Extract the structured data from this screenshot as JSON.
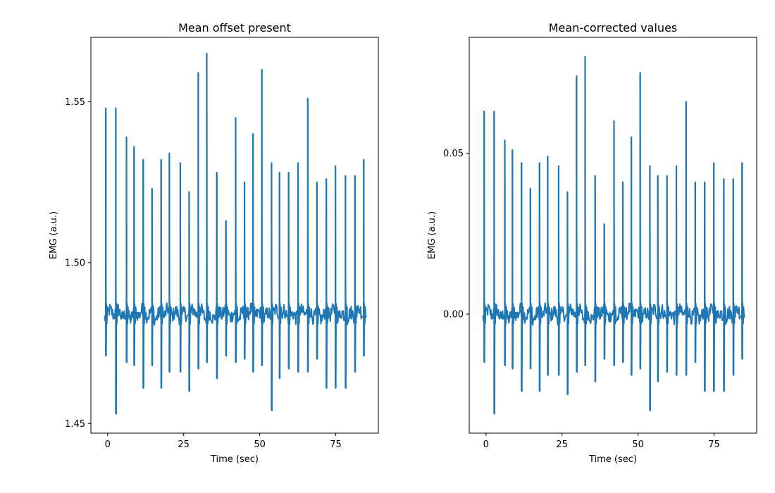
{
  "chart_data": [
    {
      "type": "line",
      "title": "Mean offset present",
      "xlabel": "Time (sec)",
      "ylabel": "EMG (a.u.)",
      "xlim": [
        -5.5,
        89
      ],
      "ylim": [
        1.447,
        1.57
      ],
      "x_ticks": [
        0,
        25,
        50,
        75
      ],
      "x_tick_labels": [
        "0",
        "25",
        "50",
        "75"
      ],
      "y_ticks": [
        1.45,
        1.5,
        1.55
      ],
      "y_tick_labels": [
        "1.45",
        "1.50",
        "1.55"
      ],
      "grid": false,
      "color": "#1f77b4",
      "baseline": 1.484,
      "x_range": [
        -1,
        85
      ],
      "spikes": [
        {
          "x": -0.6,
          "high": 1.548,
          "low": 1.471
        },
        {
          "x": 2.7,
          "high": 1.548,
          "low": 1.453
        },
        {
          "x": 6.2,
          "high": 1.539,
          "low": 1.469
        },
        {
          "x": 8.7,
          "high": 1.536,
          "low": 1.468
        },
        {
          "x": 11.7,
          "high": 1.532,
          "low": 1.461
        },
        {
          "x": 14.6,
          "high": 1.523,
          "low": 1.468
        },
        {
          "x": 17.6,
          "high": 1.532,
          "low": 1.461
        },
        {
          "x": 20.3,
          "high": 1.534,
          "low": 1.466
        },
        {
          "x": 23.9,
          "high": 1.531,
          "low": 1.466
        },
        {
          "x": 26.8,
          "high": 1.522,
          "low": 1.46
        },
        {
          "x": 29.8,
          "high": 1.559,
          "low": 1.467
        },
        {
          "x": 32.6,
          "high": 1.565,
          "low": 1.469
        },
        {
          "x": 35.9,
          "high": 1.528,
          "low": 1.464
        },
        {
          "x": 38.9,
          "high": 1.513,
          "low": 1.471
        },
        {
          "x": 42.1,
          "high": 1.545,
          "low": 1.469
        },
        {
          "x": 45.0,
          "high": 1.525,
          "low": 1.47
        },
        {
          "x": 47.8,
          "high": 1.54,
          "low": 1.466
        },
        {
          "x": 50.7,
          "high": 1.56,
          "low": 1.468
        },
        {
          "x": 53.9,
          "high": 1.531,
          "low": 1.454
        },
        {
          "x": 56.5,
          "high": 1.528,
          "low": 1.464
        },
        {
          "x": 59.5,
          "high": 1.528,
          "low": 1.467
        },
        {
          "x": 62.6,
          "high": 1.531,
          "low": 1.466
        },
        {
          "x": 65.8,
          "high": 1.551,
          "low": 1.466
        },
        {
          "x": 68.8,
          "high": 1.525,
          "low": 1.47
        },
        {
          "x": 71.9,
          "high": 1.526,
          "low": 1.461
        },
        {
          "x": 74.9,
          "high": 1.53,
          "low": 1.461
        },
        {
          "x": 78.2,
          "high": 1.527,
          "low": 1.461
        },
        {
          "x": 81.3,
          "high": 1.527,
          "low": 1.466
        },
        {
          "x": 84.2,
          "high": 1.532,
          "low": 1.471
        }
      ]
    },
    {
      "type": "line",
      "title": "Mean-corrected values",
      "xlabel": "Time (sec)",
      "ylabel": "EMG (a.u.)",
      "xlim": [
        -5.5,
        89
      ],
      "ylim": [
        -0.037,
        0.086
      ],
      "x_ticks": [
        0,
        25,
        50,
        75
      ],
      "x_tick_labels": [
        "0",
        "25",
        "50",
        "75"
      ],
      "y_ticks": [
        0.0,
        0.05
      ],
      "y_tick_labels": [
        "0.00",
        "0.05"
      ],
      "grid": false,
      "color": "#1f77b4",
      "baseline": 0.0,
      "x_range": [
        -1,
        85
      ],
      "spikes": [
        {
          "x": -0.6,
          "high": 0.063,
          "low": -0.015
        },
        {
          "x": 2.7,
          "high": 0.063,
          "low": -0.031
        },
        {
          "x": 6.2,
          "high": 0.054,
          "low": -0.016
        },
        {
          "x": 8.7,
          "high": 0.051,
          "low": -0.017
        },
        {
          "x": 11.7,
          "high": 0.047,
          "low": -0.024
        },
        {
          "x": 14.6,
          "high": 0.039,
          "low": -0.017
        },
        {
          "x": 17.6,
          "high": 0.047,
          "low": -0.024
        },
        {
          "x": 20.3,
          "high": 0.049,
          "low": -0.019
        },
        {
          "x": 23.9,
          "high": 0.046,
          "low": -0.019
        },
        {
          "x": 26.8,
          "high": 0.038,
          "low": -0.025
        },
        {
          "x": 29.8,
          "high": 0.074,
          "low": -0.018
        },
        {
          "x": 32.6,
          "high": 0.08,
          "low": -0.016
        },
        {
          "x": 35.9,
          "high": 0.043,
          "low": -0.021
        },
        {
          "x": 38.9,
          "high": 0.028,
          "low": -0.014
        },
        {
          "x": 42.1,
          "high": 0.06,
          "low": -0.016
        },
        {
          "x": 45.0,
          "high": 0.041,
          "low": -0.015
        },
        {
          "x": 47.8,
          "high": 0.055,
          "low": -0.019
        },
        {
          "x": 50.7,
          "high": 0.075,
          "low": -0.017
        },
        {
          "x": 53.9,
          "high": 0.046,
          "low": -0.03
        },
        {
          "x": 56.5,
          "high": 0.043,
          "low": -0.021
        },
        {
          "x": 59.5,
          "high": 0.043,
          "low": -0.018
        },
        {
          "x": 62.6,
          "high": 0.046,
          "low": -0.019
        },
        {
          "x": 65.8,
          "high": 0.066,
          "low": -0.019
        },
        {
          "x": 68.8,
          "high": 0.041,
          "low": -0.015
        },
        {
          "x": 71.9,
          "high": 0.041,
          "low": -0.024
        },
        {
          "x": 74.9,
          "high": 0.047,
          "low": -0.024
        },
        {
          "x": 78.2,
          "high": 0.042,
          "low": -0.024
        },
        {
          "x": 81.3,
          "high": 0.042,
          "low": -0.019
        },
        {
          "x": 84.2,
          "high": 0.047,
          "low": -0.014
        }
      ]
    }
  ]
}
